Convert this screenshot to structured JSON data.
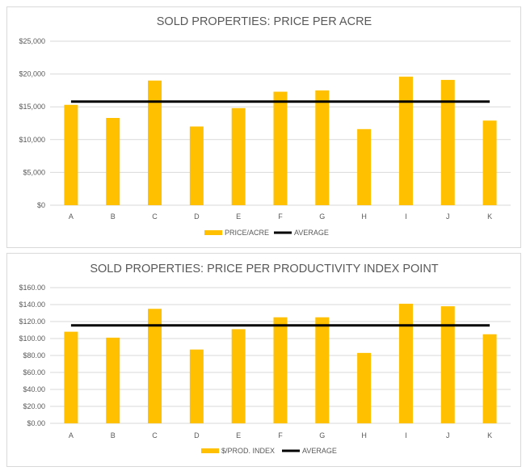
{
  "colors": {
    "bar": "#ffc000",
    "average_line": "#000000",
    "gridline": "#d9d9d9",
    "text": "#595959"
  },
  "chart_data": [
    {
      "type": "bar",
      "title": "SOLD PROPERTIES: PRICE PER ACRE",
      "categories": [
        "A",
        "B",
        "C",
        "D",
        "E",
        "F",
        "G",
        "H",
        "I",
        "J",
        "K"
      ],
      "series": [
        {
          "name": "PRICE/ACRE",
          "type": "bar",
          "values": [
            15300,
            13300,
            19000,
            12000,
            14800,
            17300,
            17500,
            11600,
            19600,
            19100,
            12900
          ]
        },
        {
          "name": "AVERAGE",
          "type": "line",
          "values": [
            15800,
            15800,
            15800,
            15800,
            15800,
            15800,
            15800,
            15800,
            15800,
            15800,
            15800
          ]
        }
      ],
      "yticks": [
        "$0",
        "$5,000",
        "$10,000",
        "$15,000",
        "$20,000",
        "$25,000"
      ],
      "ylim": [
        0,
        25000
      ],
      "ystep": 5000,
      "grid": true,
      "legend": "bottom"
    },
    {
      "type": "bar",
      "title": "SOLD PROPERTIES: PRICE PER PRODUCTIVITY INDEX  POINT",
      "categories": [
        "A",
        "B",
        "C",
        "D",
        "E",
        "F",
        "G",
        "H",
        "I",
        "J",
        "K"
      ],
      "series": [
        {
          "name": "$/PROD. INDEX",
          "type": "bar",
          "values": [
            108,
            101,
            135,
            87,
            111,
            125,
            125,
            83,
            141,
            138,
            105
          ]
        },
        {
          "name": "AVERAGE",
          "type": "line",
          "values": [
            115.5,
            115.5,
            115.5,
            115.5,
            115.5,
            115.5,
            115.5,
            115.5,
            115.5,
            115.5,
            115.5
          ]
        }
      ],
      "yticks": [
        "$0.00",
        "$20.00",
        "$40.00",
        "$60.00",
        "$80.00",
        "$100.00",
        "$120.00",
        "$140.00",
        "$160.00"
      ],
      "ylim": [
        0,
        160
      ],
      "ystep": 20,
      "grid": true,
      "legend": "bottom"
    }
  ]
}
